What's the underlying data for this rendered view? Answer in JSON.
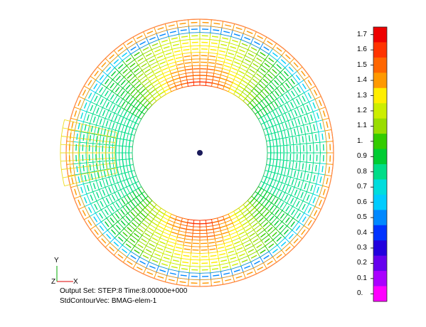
{
  "colorbar": {
    "labels": [
      "1.7",
      "1.6",
      "1.5",
      "1.4",
      "1.3",
      "1.2",
      "1.1",
      "1.",
      "0.9",
      "0.8",
      "0.7",
      "0.6",
      "0.5",
      "0.4",
      "0.3",
      "0.2",
      "0.1",
      "0."
    ],
    "colors": [
      "#ee0000",
      "#ff3300",
      "#ff6600",
      "#ff9900",
      "#ffee00",
      "#ccee00",
      "#99dd00",
      "#33cc00",
      "#00cc33",
      "#00dd88",
      "#00dddd",
      "#00ccff",
      "#0088ff",
      "#0033ff",
      "#2200dd",
      "#6600ee",
      "#aa00ff",
      "#ff00ff"
    ]
  },
  "triad": {
    "y": "Y",
    "z": "Z",
    "x": "X"
  },
  "info": {
    "line1": "Output Set: STEP:8 Time:8.00000e+000",
    "line2": "StdContourVec: BMAG-elem-1"
  }
}
